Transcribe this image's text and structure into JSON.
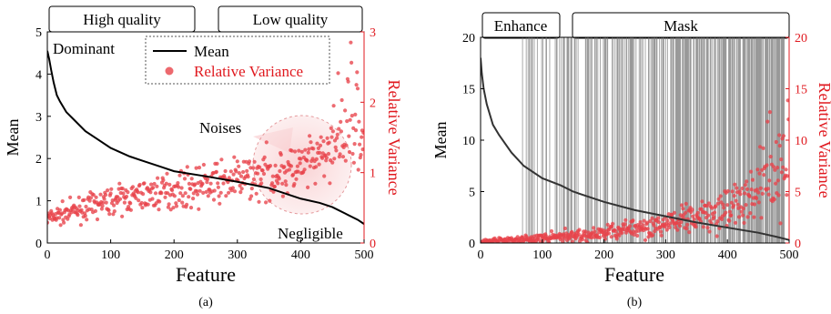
{
  "chart_data": [
    {
      "type": "line+scatter",
      "caption": "(a)",
      "xlabel": "Feature",
      "ylabel_left": "Mean",
      "ylabel_right": "Relative Variance",
      "xlim": [
        0,
        500
      ],
      "ylim_left": [
        0,
        5
      ],
      "ylim_right": [
        0,
        3
      ],
      "x_ticks": [
        "0",
        "100",
        "200",
        "300",
        "400",
        "500"
      ],
      "y_left_ticks": [
        "0",
        "1",
        "2",
        "3",
        "4",
        "5"
      ],
      "y_right_ticks": [
        "0",
        "1",
        "2",
        "3"
      ],
      "banners": [
        "High quality",
        "Low quality"
      ],
      "annotations": [
        "Dominant",
        "Noises",
        "Negligible"
      ],
      "legend": {
        "placement": "top-right",
        "entries": [
          "Mean",
          "Relative Variance"
        ]
      },
      "series": [
        {
          "name": "Mean",
          "axis": "left",
          "style": "line",
          "color": "#000000",
          "x": [
            0,
            3,
            6,
            10,
            15,
            20,
            30,
            40,
            60,
            80,
            100,
            130,
            150,
            180,
            200,
            250,
            300,
            350,
            400,
            430,
            450,
            470,
            490,
            500
          ],
          "y": [
            4.55,
            4.35,
            4.1,
            3.8,
            3.5,
            3.35,
            3.1,
            2.95,
            2.65,
            2.45,
            2.25,
            2.05,
            1.95,
            1.8,
            1.7,
            1.58,
            1.45,
            1.3,
            1.05,
            0.95,
            0.85,
            0.7,
            0.55,
            0.45
          ]
        },
        {
          "name": "Relative Variance",
          "axis": "right",
          "style": "scatter",
          "color": "#e8434a",
          "approx_trend_x": [
            0,
            100,
            200,
            300,
            400,
            450,
            500
          ],
          "approx_trend_y": [
            0.35,
            0.6,
            0.75,
            0.9,
            1.05,
            1.3,
            1.6
          ],
          "count": 500
        }
      ]
    },
    {
      "type": "line+scatter",
      "caption": "(b)",
      "xlabel": "Feature",
      "ylabel_left": "Mean",
      "ylabel_right": "Relative Variance",
      "xlim": [
        0,
        500
      ],
      "ylim_left": [
        0,
        20
      ],
      "ylim_right": [
        0,
        20
      ],
      "x_ticks": [
        "0",
        "100",
        "200",
        "300",
        "400",
        "500"
      ],
      "y_left_ticks": [
        "0",
        "5",
        "10",
        "15",
        "20"
      ],
      "y_right_ticks": [
        "0",
        "5",
        "10",
        "15",
        "20"
      ],
      "banners": [
        "Enhance",
        "Mask"
      ],
      "mask_region_start": 68,
      "series": [
        {
          "name": "Mean",
          "axis": "left",
          "style": "line",
          "color": "#333333",
          "x": [
            0,
            2,
            5,
            10,
            20,
            30,
            50,
            70,
            100,
            130,
            150,
            200,
            250,
            300,
            350,
            400,
            450,
            480,
            500
          ],
          "y": [
            18.0,
            16.5,
            15.0,
            13.5,
            11.5,
            10.5,
            8.8,
            7.5,
            6.3,
            5.6,
            5.0,
            4.0,
            3.2,
            2.6,
            2.0,
            1.5,
            1.0,
            0.6,
            0.3
          ]
        },
        {
          "name": "Relative Variance",
          "axis": "right",
          "style": "scatter",
          "color": "#e8434a",
          "approx_trend_x": [
            0,
            100,
            200,
            300,
            400,
            450,
            500
          ],
          "approx_trend_y": [
            0.1,
            0.5,
            1.0,
            1.8,
            3.5,
            5.0,
            7.0
          ],
          "count": 500
        }
      ]
    }
  ]
}
